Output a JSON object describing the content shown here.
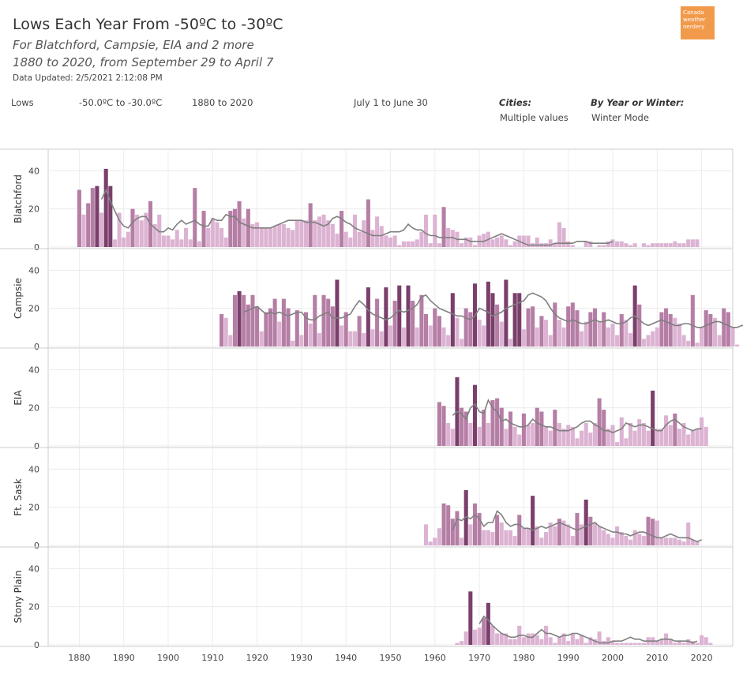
{
  "header": {
    "title": "Lows Each Year From -50ºC to -30ºC",
    "subtitle1": "For Blatchford, Campsie, EIA and 2 more",
    "subtitle2": "1880 to 2020, from September 29 to April 7",
    "updated": "Data Updated: 2/5/2021 2:12:08 PM",
    "logo": "Canada weather nerdery"
  },
  "filters": {
    "f1": "Lows",
    "f2": "-50.0ºC to -30.0ºC",
    "f3": "1880 to 2020",
    "f4": "July 1 to June 30",
    "cities_label": "Cities:",
    "cities_value": "Multiple values",
    "mode_label": "By Year or Winter:",
    "mode_value": "Winter Mode"
  },
  "colors": {
    "bar_light": "#dcb3d2",
    "bar_mid": "#b57ea5",
    "bar_dark": "#7a3f6b",
    "trend": "#7f7f7f",
    "grid": "#ececec",
    "axis": "#cccccc"
  },
  "chart_data": {
    "type": "bar",
    "x_ticks": [
      1880,
      1890,
      1900,
      1910,
      1920,
      1930,
      1940,
      1950,
      1960,
      1970,
      1980,
      1990,
      2000,
      2010,
      2020
    ],
    "y_ticks": [
      0,
      20,
      40
    ],
    "ylim": [
      0,
      48
    ],
    "xlim": [
      1873,
      2027
    ],
    "panels": [
      {
        "name": "Blatchford",
        "start": 1880,
        "values": [
          30,
          17,
          23,
          31,
          32,
          18,
          41,
          32,
          4,
          18,
          5,
          8,
          20,
          17,
          14,
          18,
          24,
          12,
          17,
          6,
          6,
          4,
          9,
          4,
          10,
          4,
          31,
          3,
          19,
          10,
          15,
          13,
          10,
          5,
          19,
          20,
          24,
          15,
          20,
          12,
          13,
          10,
          10,
          10,
          11,
          12,
          12,
          10,
          9,
          14,
          14,
          14,
          23,
          14,
          16,
          17,
          14,
          12,
          7,
          19,
          8,
          5,
          17,
          8,
          14,
          25,
          9,
          16,
          11,
          6,
          5,
          6,
          1,
          3,
          3,
          3,
          4,
          8,
          17,
          2,
          17,
          2,
          21,
          10,
          9,
          8,
          2,
          5,
          5,
          1,
          6,
          7,
          8,
          4,
          5,
          6,
          4,
          1,
          3,
          6,
          6,
          6,
          2,
          5,
          2,
          2,
          4,
          2,
          13,
          10,
          3,
          1,
          0,
          0,
          3,
          3,
          0,
          1,
          1,
          3,
          4,
          3,
          3,
          2,
          1,
          2,
          0,
          2,
          1,
          2,
          2,
          2,
          2,
          2,
          3,
          2,
          2,
          4,
          4,
          4
        ],
        "trend_start": 1885,
        "trend": [
          25,
          30,
          24,
          19,
          14,
          11,
          10,
          13,
          15,
          16,
          16,
          12,
          10,
          8,
          8,
          10,
          9,
          12,
          14,
          12,
          13,
          14,
          12,
          11,
          11,
          15,
          14,
          14,
          17,
          16,
          16,
          13,
          12,
          11,
          10,
          10,
          10,
          10,
          10,
          11,
          12,
          13,
          14,
          14,
          14,
          14,
          13,
          13,
          13,
          12,
          11,
          12,
          15,
          16,
          15,
          13,
          12,
          10,
          9,
          8,
          7,
          6,
          6,
          6,
          7,
          8,
          8,
          8,
          9,
          12,
          10,
          9,
          9,
          7,
          6,
          6,
          5,
          5,
          5,
          5,
          4,
          4,
          4,
          3,
          3,
          3,
          3,
          4,
          5,
          6,
          7,
          6,
          5,
          4,
          3,
          2,
          1,
          1,
          1,
          1,
          1,
          1,
          2,
          2,
          2,
          2,
          2,
          3,
          3,
          3,
          2,
          2,
          2,
          2,
          2,
          3
        ]
      },
      {
        "name": "Campsie",
        "start": 1912,
        "values": [
          17,
          15,
          6,
          27,
          29,
          27,
          22,
          27,
          21,
          8,
          18,
          20,
          25,
          13,
          25,
          20,
          3,
          19,
          6,
          18,
          12,
          27,
          7,
          27,
          25,
          21,
          35,
          11,
          18,
          8,
          8,
          16,
          7,
          31,
          9,
          25,
          8,
          31,
          11,
          24,
          32,
          10,
          32,
          24,
          10,
          27,
          17,
          11,
          20,
          16,
          10,
          6,
          28,
          15,
          4,
          20,
          18,
          33,
          14,
          11,
          34,
          28,
          22,
          13,
          35,
          4,
          28,
          28,
          9,
          20,
          21,
          10,
          16,
          14,
          6,
          23,
          14,
          10,
          21,
          23,
          19,
          8,
          13,
          18,
          20,
          13,
          18,
          10,
          12,
          6,
          17,
          14,
          7,
          32,
          22,
          4,
          6,
          8,
          10,
          18,
          20,
          17,
          15,
          12,
          6,
          3,
          27,
          2,
          10,
          19,
          17,
          15,
          6,
          20,
          18,
          10,
          1
        ],
        "trend_start": 1917,
        "trend": [
          18,
          19,
          20,
          21,
          19,
          17,
          18,
          17,
          18,
          17,
          16,
          17,
          18,
          18,
          15,
          14,
          14,
          16,
          17,
          18,
          15,
          15,
          15,
          16,
          17,
          21,
          24,
          22,
          19,
          17,
          16,
          15,
          14,
          15,
          17,
          19,
          18,
          19,
          20,
          22,
          26,
          27,
          24,
          22,
          20,
          19,
          18,
          17,
          16,
          16,
          15,
          14,
          16,
          20,
          19,
          18,
          16,
          17,
          18,
          20,
          21,
          22,
          23,
          24,
          27,
          28,
          27,
          26,
          24,
          20,
          17,
          15,
          14,
          13,
          14,
          13,
          12,
          12,
          13,
          14,
          13,
          13,
          14,
          13,
          12,
          12,
          13,
          15,
          16,
          14,
          12,
          11,
          12,
          13,
          14,
          13,
          12,
          11,
          11,
          12,
          12,
          11,
          10,
          10,
          11,
          12,
          13,
          13,
          12,
          11,
          10,
          10,
          11,
          11
        ]
      },
      {
        "name": "EIA",
        "start": 1961,
        "values": [
          23,
          21,
          12,
          9,
          36,
          20,
          18,
          12,
          32,
          10,
          19,
          12,
          24,
          25,
          20,
          9,
          18,
          10,
          6,
          17,
          11,
          12,
          20,
          18,
          10,
          8,
          19,
          12,
          9,
          11,
          10,
          4,
          8,
          12,
          7,
          12,
          25,
          19,
          9,
          11,
          2,
          15,
          4,
          12,
          8,
          14,
          12,
          8,
          29,
          9,
          9,
          16,
          11,
          17,
          9,
          12,
          6,
          8,
          9,
          15,
          10
        ],
        "trend_start": 1964,
        "trend": [
          16,
          18,
          17,
          14,
          20,
          22,
          18,
          17,
          24,
          20,
          18,
          13,
          14,
          12,
          11,
          10,
          10,
          11,
          14,
          12,
          11,
          10,
          10,
          9,
          8,
          8,
          8,
          9,
          10,
          12,
          13,
          13,
          11,
          10,
          8,
          8,
          7,
          8,
          9,
          12,
          11,
          10,
          11,
          11,
          10,
          9,
          8,
          8,
          11,
          13,
          14,
          12,
          10,
          9,
          8,
          9,
          9
        ]
      },
      {
        "name": "Ft. Sask",
        "start": 1958,
        "values": [
          11,
          2,
          4,
          9,
          22,
          21,
          14,
          18,
          4,
          29,
          11,
          22,
          17,
          8,
          8,
          7,
          16,
          12,
          8,
          8,
          5,
          16,
          9,
          9,
          26,
          10,
          4,
          7,
          12,
          10,
          14,
          13,
          11,
          5,
          17,
          11,
          24,
          15,
          12,
          10,
          8,
          6,
          4,
          10,
          7,
          5,
          3,
          8,
          6,
          5,
          15,
          14,
          13,
          4,
          4,
          4,
          4,
          3,
          2,
          12,
          3,
          2
        ],
        "trend_start": 1964,
        "trend": [
          8,
          14,
          13,
          15,
          14,
          16,
          14,
          10,
          12,
          12,
          18,
          16,
          12,
          10,
          11,
          11,
          9,
          9,
          8,
          9,
          10,
          9,
          10,
          11,
          12,
          11,
          10,
          9,
          8,
          9,
          10,
          11,
          12,
          10,
          9,
          8,
          7,
          7,
          6,
          6,
          5,
          6,
          7,
          7,
          6,
          5,
          4,
          4,
          5,
          6,
          5,
          4,
          4,
          4,
          3,
          2,
          3
        ]
      },
      {
        "name": "Stony Plain",
        "start": 1965,
        "values": [
          1,
          2,
          7,
          28,
          8,
          9,
          14,
          22,
          10,
          6,
          6,
          6,
          3,
          3,
          10,
          4,
          6,
          6,
          5,
          3,
          10,
          4,
          1,
          4,
          6,
          2,
          6,
          3,
          5,
          1,
          4,
          3,
          7,
          2,
          4,
          2,
          1,
          1,
          1,
          1,
          1,
          1,
          1,
          4,
          4,
          2,
          3,
          6,
          3,
          1,
          2,
          1,
          3,
          2,
          1,
          5,
          4,
          1
        ],
        "trend_start": 1970,
        "trend": [
          11,
          15,
          13,
          10,
          8,
          6,
          5,
          4,
          4,
          5,
          5,
          4,
          4,
          6,
          8,
          6,
          6,
          5,
          4,
          5,
          5,
          6,
          6,
          5,
          4,
          3,
          2,
          1,
          1,
          1,
          2,
          2,
          2,
          3,
          4,
          3,
          3,
          2,
          2,
          2,
          2,
          3,
          3,
          3,
          2,
          2,
          2,
          2,
          1,
          2
        ]
      }
    ]
  }
}
